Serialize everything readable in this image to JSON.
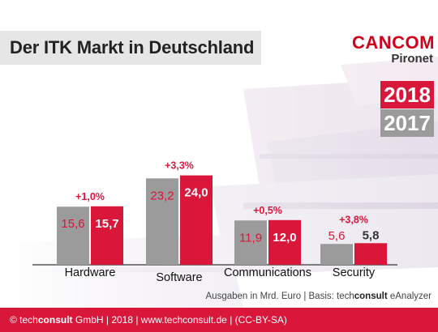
{
  "title": "Der ITK Markt in Deutschland",
  "logo": {
    "main": "CANCOM",
    "sub": "Pironet"
  },
  "legend": [
    {
      "label": "2018",
      "color": "#d9173a"
    },
    {
      "label": "2017",
      "color": "#9b9b9b"
    }
  ],
  "source": {
    "prefix": "Ausgaben in Mrd. Euro | Basis: tech",
    "bold": "consult",
    "suffix": " eAnalyzer"
  },
  "footer": {
    "prefix": "© tech",
    "bold": "consult",
    "suffix": " GmbH | 2018 | www.techconsult.de | (CC-BY-SA)"
  },
  "chart_data": {
    "type": "bar",
    "title": "Der ITK Markt in Deutschland",
    "categories": [
      "Hardware",
      "Software",
      "Communications",
      "Security"
    ],
    "series": [
      {
        "name": "2017",
        "values": [
          15.6,
          23.2,
          11.9,
          5.6
        ],
        "labels": [
          "15,6",
          "23,2",
          "11,9",
          "5,6"
        ],
        "color": "#9b9b9b"
      },
      {
        "name": "2018",
        "values": [
          15.7,
          24.0,
          12.0,
          5.8
        ],
        "labels": [
          "15,7",
          "24,0",
          "12,0",
          "5,8"
        ],
        "color": "#d9173a"
      }
    ],
    "growth": [
      "+1,0%",
      "+3,3%",
      "+0,5%",
      "+3,8%"
    ],
    "ylabel": "Ausgaben in Mrd. Euro",
    "ylim": [
      0,
      25
    ]
  }
}
